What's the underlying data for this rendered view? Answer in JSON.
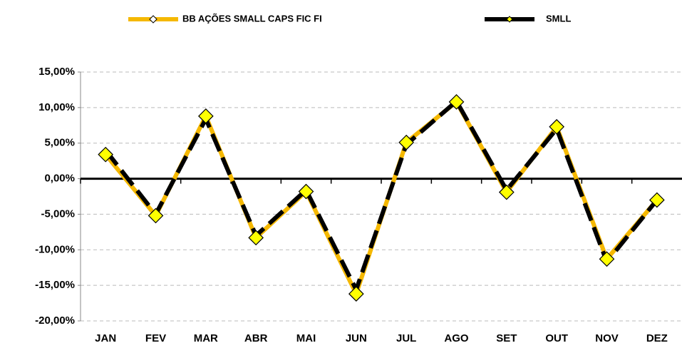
{
  "chart_data": {
    "type": "line",
    "categories": [
      "JAN",
      "FEV",
      "MAR",
      "ABR",
      "MAI",
      "JUN",
      "JUL",
      "AGO",
      "SET",
      "OUT",
      "NOV",
      "DEZ"
    ],
    "series": [
      {
        "name": "BB AÇÕES SMALL CAPS FIC FI",
        "color": "#f5b800",
        "values": [
          3.4,
          -5.2,
          8.8,
          -8.3,
          -1.8,
          -16.2,
          5.1,
          10.8,
          -1.9,
          7.3,
          -11.3,
          -3.0
        ]
      },
      {
        "name": "SMLL",
        "color": "#000000",
        "values": [
          4.0,
          -5.0,
          8.4,
          -8.0,
          -1.6,
          -15.6,
          4.8,
          10.9,
          -1.6,
          7.0,
          -11.7,
          -3.0
        ]
      }
    ],
    "ylim": [
      -20,
      15
    ],
    "yticks": [
      {
        "value": -20,
        "label": "-20,00%"
      },
      {
        "value": -15,
        "label": "-15,00%"
      },
      {
        "value": -10,
        "label": "-10,00%"
      },
      {
        "value": -5,
        "label": "-5,00%"
      },
      {
        "value": 0,
        "label": "0,00%"
      },
      {
        "value": 5,
        "label": "5,00%"
      },
      {
        "value": 10,
        "label": "10,00%"
      },
      {
        "value": 15,
        "label": "15,00%"
      }
    ],
    "grid": true
  }
}
